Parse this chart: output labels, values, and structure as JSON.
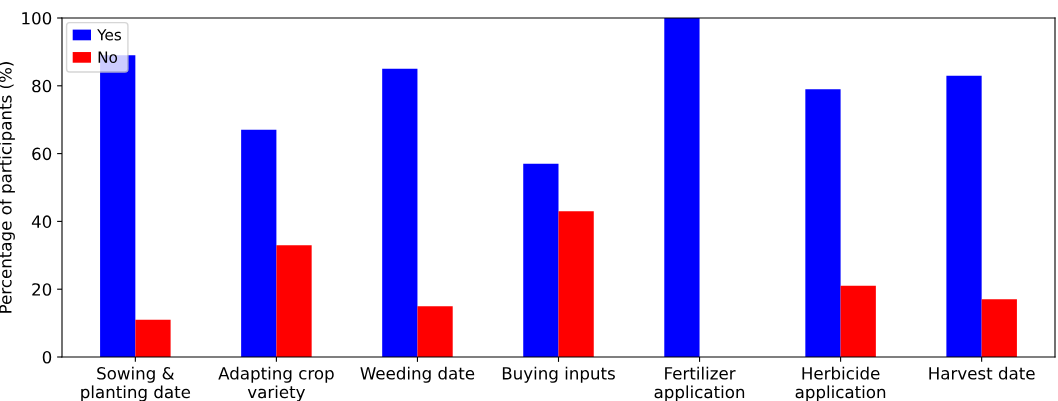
{
  "chart_data": {
    "type": "bar",
    "ylabel": "Percentage of participants (%)",
    "categories": [
      "Sowing &\nplanting date",
      "Adapting crop\nvariety",
      "Weeding date",
      "Buying inputs",
      "Fertilizer\napplication",
      "Herbicide\napplication",
      "Harvest date"
    ],
    "series": [
      {
        "name": "Yes",
        "color": "#0000ff",
        "values": [
          89,
          67,
          85,
          57,
          100,
          79,
          83
        ]
      },
      {
        "name": "No",
        "color": "#ff0000",
        "values": [
          11,
          33,
          15,
          43,
          0,
          21,
          17
        ]
      }
    ],
    "ylim": [
      0,
      100
    ],
    "yticks": [
      0,
      20,
      40,
      60,
      80,
      100
    ],
    "legend": "top left",
    "grid": false
  }
}
